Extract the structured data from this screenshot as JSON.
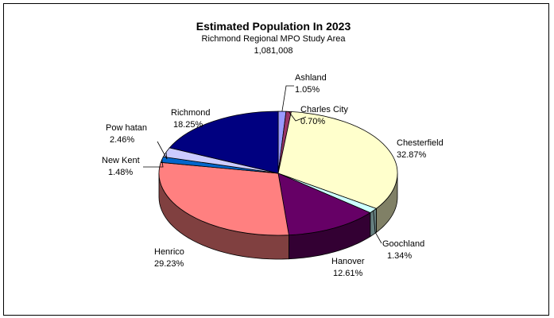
{
  "chart_data": {
    "type": "pie",
    "title": "Estimated Population In 2023",
    "subtitle": "Richmond Regional MPO Study Area",
    "total": "1,081,008",
    "slices": [
      {
        "name": "Ashland",
        "pct_label": "1.05%",
        "value": 1.05,
        "color": "#9999ff",
        "side": "#4d4d80"
      },
      {
        "name": "Charles City",
        "pct_label": "0.70%",
        "value": 0.7,
        "color": "#993366",
        "side": "#4d1a33"
      },
      {
        "name": "Chesterfield",
        "pct_label": "32.87%",
        "value": 32.87,
        "color": "#ffffcc",
        "side": "#808066"
      },
      {
        "name": "Goochland",
        "pct_label": "1.34%",
        "value": 1.34,
        "color": "#ccffff",
        "side": "#668080"
      },
      {
        "name": "Hanover",
        "pct_label": "12.61%",
        "value": 12.61,
        "color": "#660066",
        "side": "#330033"
      },
      {
        "name": "Henrico",
        "pct_label": "29.23%",
        "value": 29.23,
        "color": "#ff8080",
        "side": "#804040"
      },
      {
        "name": "New Kent",
        "pct_label": "1.48%",
        "value": 1.48,
        "color": "#0066cc",
        "side": "#003366"
      },
      {
        "name": "Pow hatan",
        "pct_label": "2.46%",
        "value": 2.46,
        "color": "#ccccff",
        "side": "#666680"
      },
      {
        "name": "Richmond",
        "pct_label": "18.25%",
        "value": 18.25,
        "color": "#000080",
        "side": "#000040"
      }
    ]
  }
}
